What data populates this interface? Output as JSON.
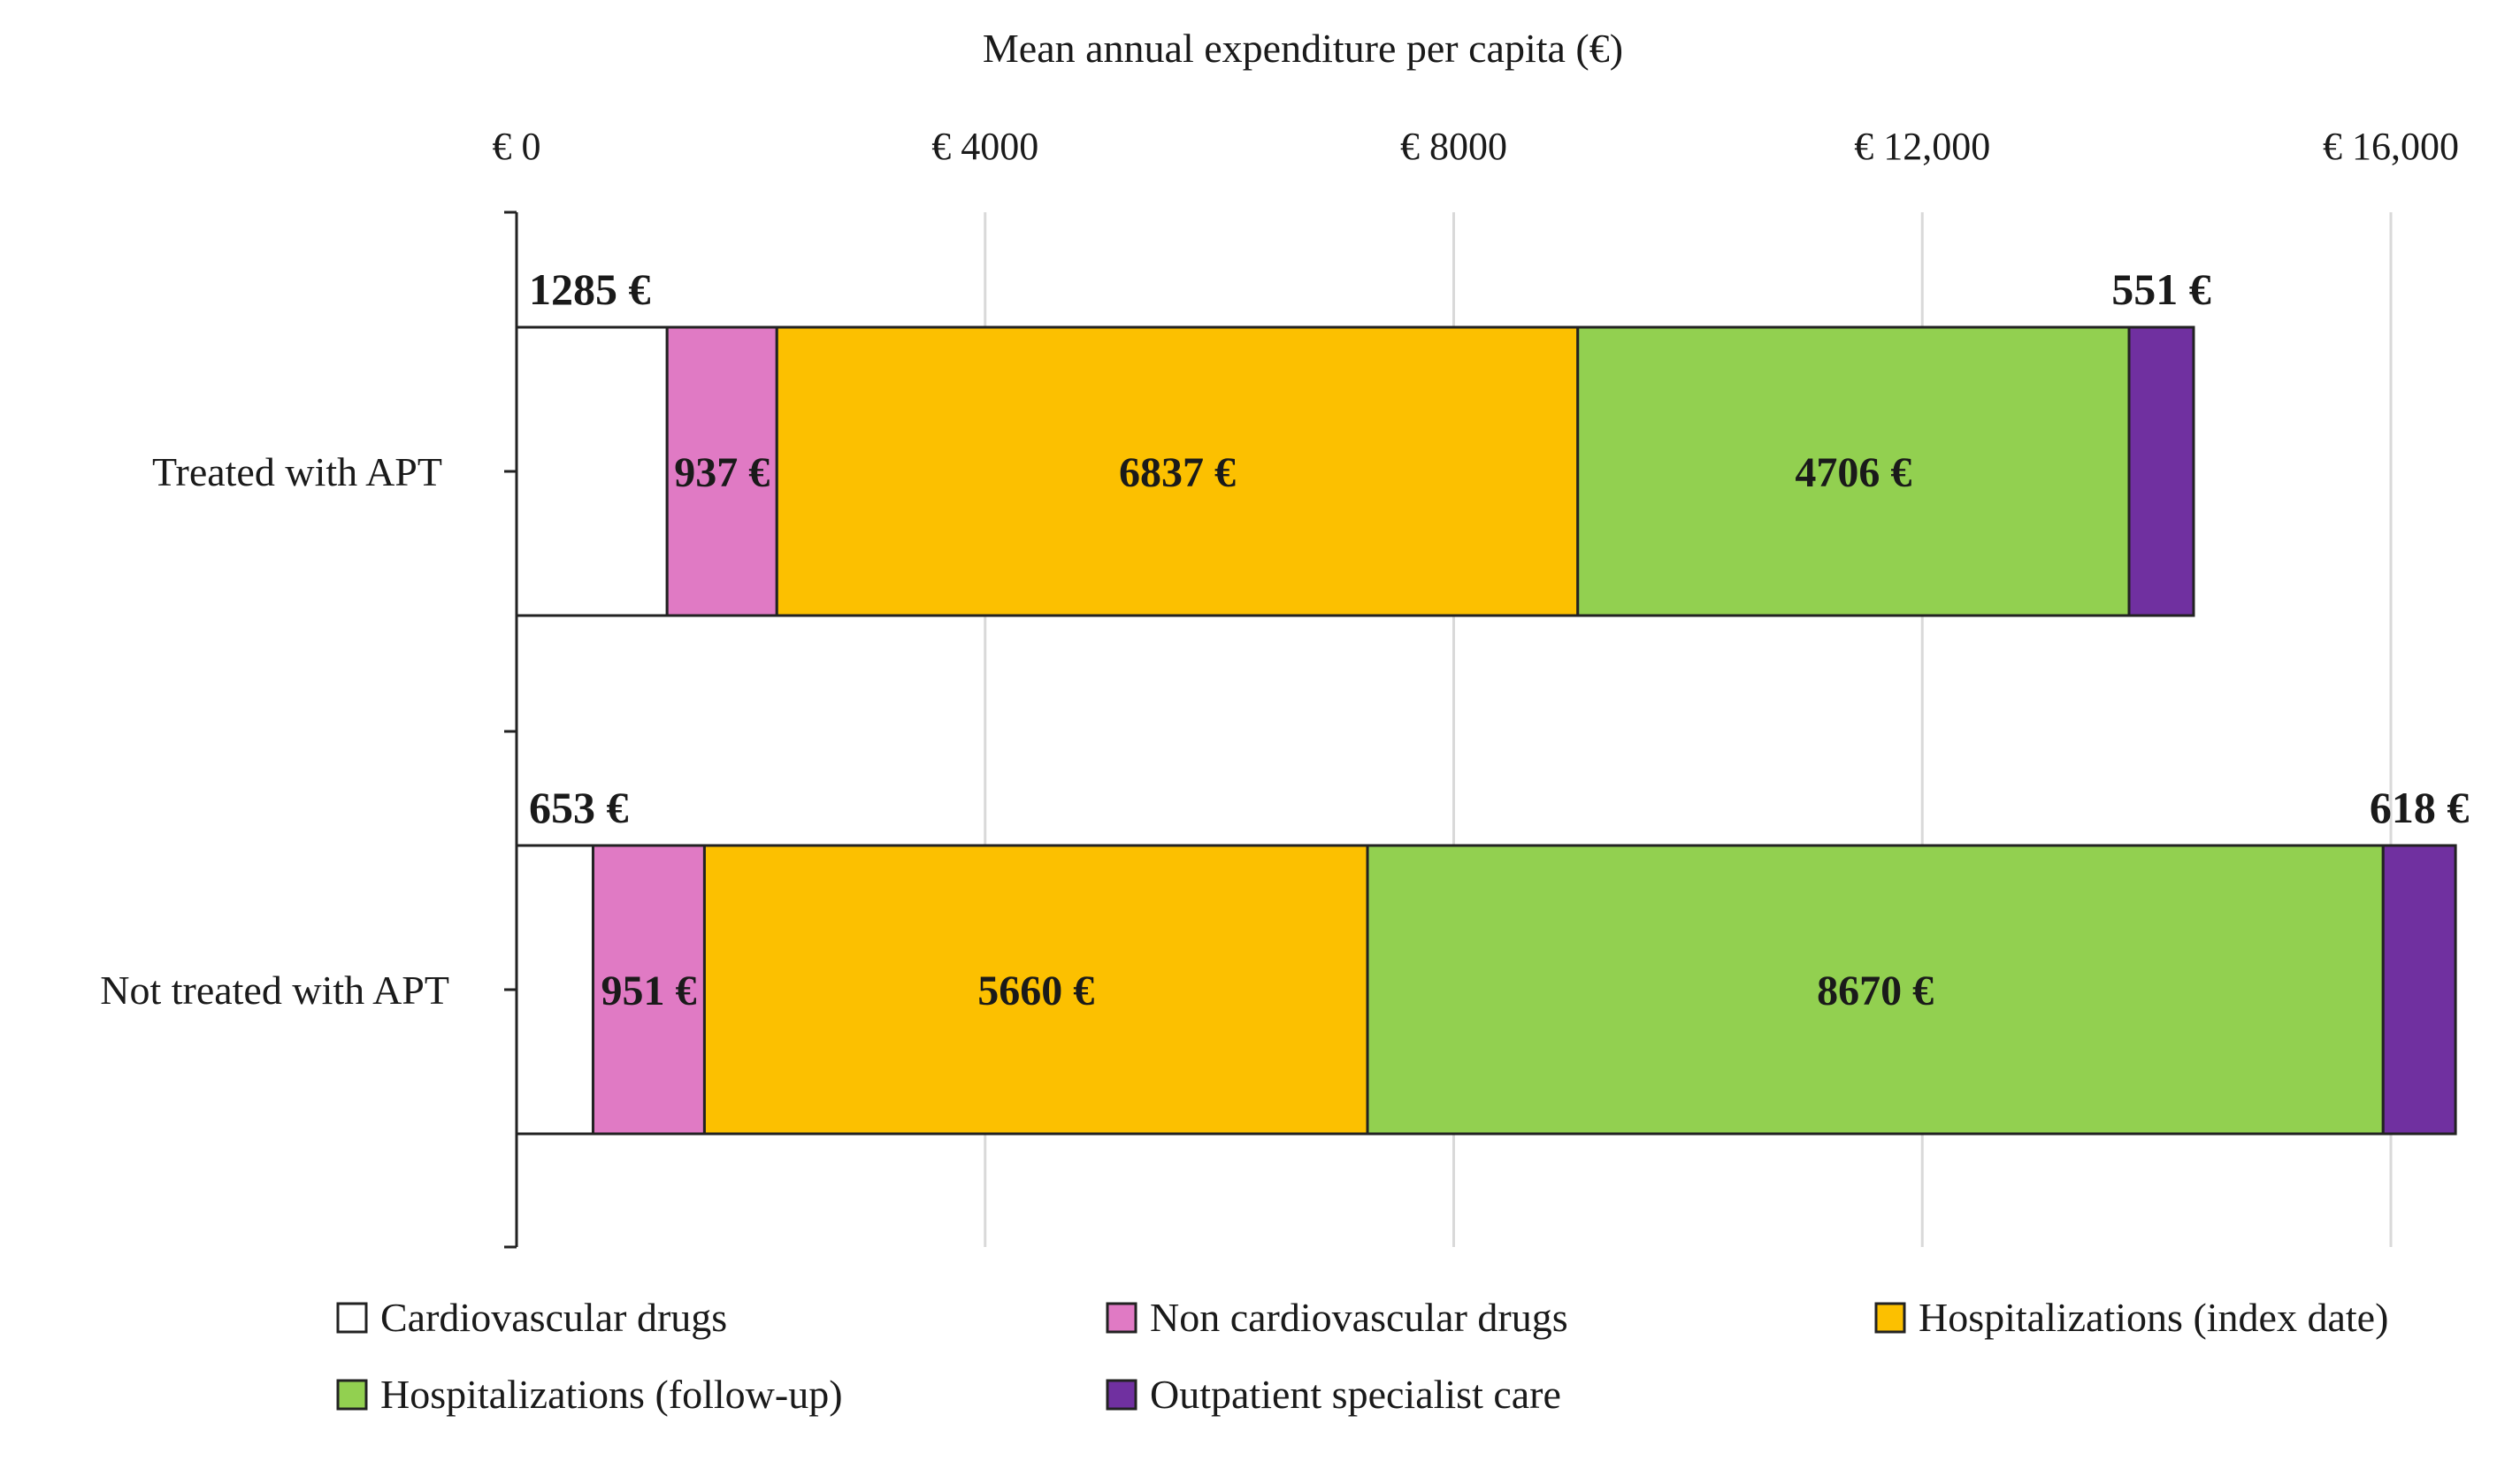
{
  "chart_data": {
    "type": "bar",
    "orientation": "horizontal",
    "stacked": true,
    "title": "Mean annual expenditure per capita (€)",
    "xlabel": "Mean annual expenditure per capita (€)",
    "ylabel": "",
    "xlim": [
      0,
      16000
    ],
    "x_ticks": [
      0,
      4000,
      8000,
      12000,
      16000
    ],
    "x_tick_labels": [
      "€ 0",
      "€ 4000",
      "€ 8000",
      "€ 12,000",
      "€ 16,000"
    ],
    "grid": true,
    "categories": [
      "Treated with APT",
      "Not treated with APT"
    ],
    "series": [
      {
        "name": "Cardiovascular drugs",
        "color": "#ffffff",
        "values": [
          1285,
          653
        ],
        "labels": [
          "1285 €",
          "653 €"
        ],
        "label_position": "above"
      },
      {
        "name": "Non cardiovascular drugs",
        "color": "#e07ac4",
        "values": [
          937,
          951
        ],
        "labels": [
          "937 €",
          "951 €"
        ],
        "label_position": "inside"
      },
      {
        "name": "Hospitalizations (index date)",
        "color": "#fcc000",
        "values": [
          6837,
          5660
        ],
        "labels": [
          "6837 €",
          "5660 €"
        ],
        "label_position": "inside"
      },
      {
        "name": "Hospitalizations (follow-up)",
        "color": "#92d050",
        "values": [
          4706,
          8670
        ],
        "labels": [
          "4706 €",
          "8670 €"
        ],
        "label_position": "inside"
      },
      {
        "name": "Outpatient specialist care",
        "color": "#7030a0",
        "values": [
          551,
          618
        ],
        "labels": [
          "551 €",
          "618 €"
        ],
        "label_position": "above"
      }
    ],
    "legend": {
      "placement": "bottom"
    }
  }
}
